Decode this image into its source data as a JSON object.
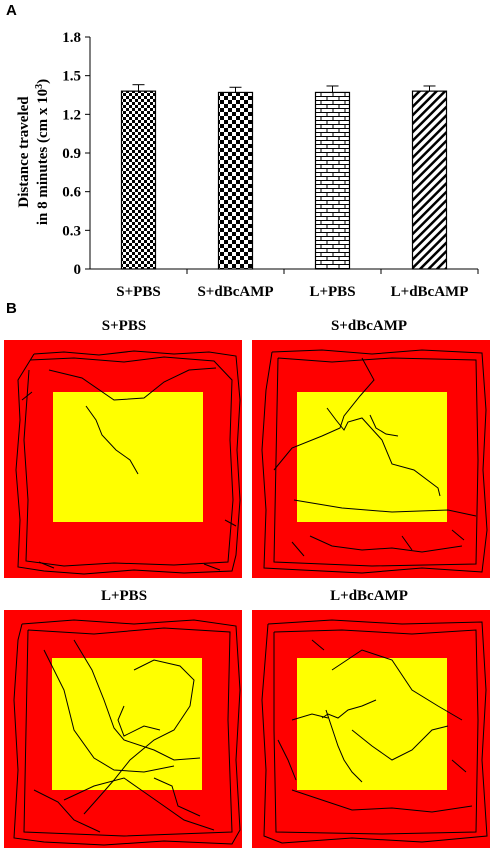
{
  "figure": {
    "panel_a_letter": "A",
    "panel_b_letter": "B"
  },
  "chart_data": {
    "type": "bar",
    "categories": [
      "S+PBS",
      "S+dBcAMP",
      "L+PBS",
      "L+dBcAMP"
    ],
    "values": [
      1.38,
      1.37,
      1.37,
      1.38
    ],
    "errors": [
      0.05,
      0.04,
      0.05,
      0.04
    ],
    "patterns": [
      "small-checker",
      "large-checker",
      "brick",
      "diagonal-hatch"
    ],
    "ylabel_line1": "Distance traveled",
    "ylabel_line2": "in 8 minutes (cm x 10",
    "ylabel_sup": "3",
    "ylabel_close": ")",
    "ylim": [
      0,
      1.8
    ],
    "yticks": [
      "0",
      "0.3",
      "0.6",
      "0.9",
      "1.2",
      "1.5",
      "1.8"
    ],
    "grid": false
  },
  "tracks": {
    "titles": [
      "S+PBS",
      "S+dBcAMP",
      "L+PBS",
      "L+dBcAMP"
    ],
    "outer_color": "#ff0000",
    "center_color": "#ffff00",
    "path_color": "#000000"
  }
}
